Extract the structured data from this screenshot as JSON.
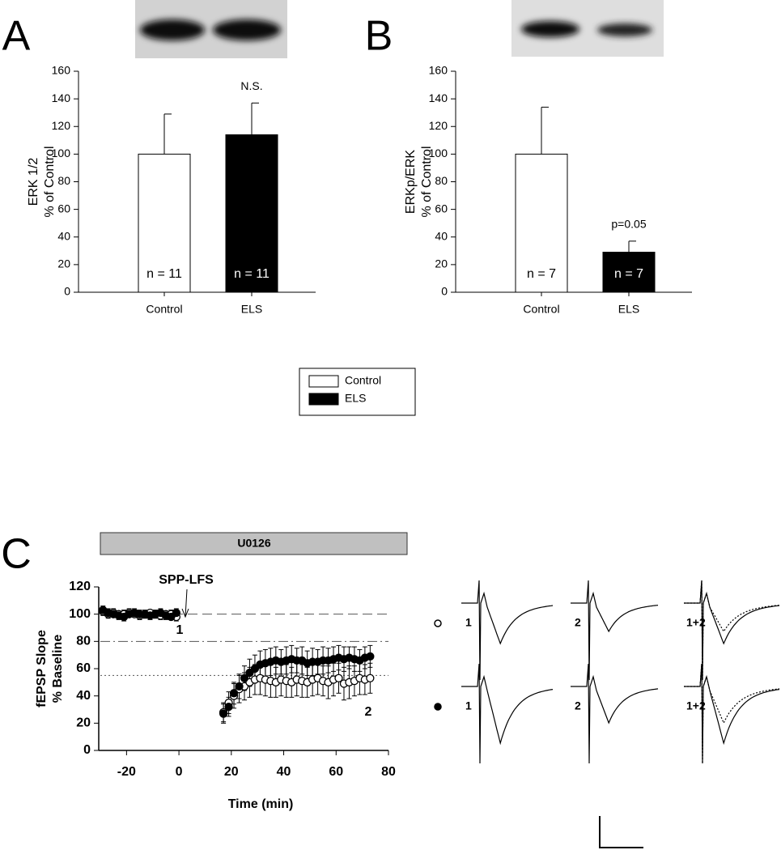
{
  "chart_data": [
    {
      "type": "bar",
      "panel": "A",
      "ylabel": [
        "ERK 1/2",
        "% of Control"
      ],
      "categories": [
        "Control",
        "ELS"
      ],
      "values": [
        100,
        114
      ],
      "errors": [
        29,
        23
      ],
      "colors": [
        "#ffffff",
        "#000000"
      ],
      "bar_labels": [
        "n = 11",
        "n = 11"
      ],
      "value_annotations": [
        null,
        "N.S."
      ],
      "ylim": [
        0,
        160
      ],
      "yticks": [
        0,
        20,
        40,
        60,
        80,
        100,
        120,
        140,
        160
      ]
    },
    {
      "type": "bar",
      "panel": "B",
      "ylabel": [
        "ERKp/ERK",
        "% of Control"
      ],
      "categories": [
        "Control",
        "ELS"
      ],
      "values": [
        100,
        29
      ],
      "errors": [
        34,
        8
      ],
      "colors": [
        "#ffffff",
        "#000000"
      ],
      "bar_labels": [
        "n = 7",
        "n = 7"
      ],
      "value_annotations": [
        null,
        "p=0.05"
      ],
      "ylim": [
        0,
        160
      ],
      "yticks": [
        0,
        20,
        40,
        60,
        80,
        100,
        120,
        140,
        160
      ]
    },
    {
      "type": "scatter",
      "panel": "C",
      "drug_bar": "U0126",
      "xlabel": "Time (min)",
      "ylabel": [
        "fEPSP Slope",
        "% Baseline"
      ],
      "x": [
        -29,
        -27,
        -25,
        -23,
        -21,
        -19,
        -17,
        -15,
        -13,
        -11,
        -9,
        -7,
        -5,
        -3,
        -1,
        17,
        19,
        21,
        23,
        25,
        27,
        29,
        31,
        33,
        35,
        37,
        39,
        41,
        43,
        45,
        47,
        49,
        51,
        53,
        55,
        57,
        59,
        61,
        63,
        65,
        67,
        69,
        71,
        73
      ],
      "series": [
        {
          "marker": "open",
          "color": "#ffffff",
          "values": [
            102,
            100,
            101,
            100,
            100,
            101,
            100,
            99,
            100,
            101,
            100,
            99,
            100,
            100,
            98,
            28,
            35,
            40,
            45,
            47,
            50,
            52,
            53,
            52,
            51,
            50,
            52,
            51,
            50,
            52,
            51,
            50,
            52,
            53,
            51,
            50,
            52,
            53,
            49,
            50,
            51,
            53,
            52,
            53
          ],
          "errors": [
            3,
            3,
            3,
            2,
            3,
            3,
            2,
            3,
            3,
            2,
            3,
            3,
            2,
            3,
            3,
            7,
            8,
            9,
            10,
            10,
            11,
            11,
            12,
            12,
            12,
            11,
            12,
            12,
            11,
            12,
            12,
            11,
            12,
            12,
            11,
            12,
            12,
            11,
            12,
            12,
            11,
            12,
            11,
            11
          ]
        },
        {
          "marker": "filled",
          "color": "#000000",
          "values": [
            103,
            101,
            100,
            99,
            98,
            100,
            101,
            100,
            100,
            99,
            100,
            101,
            99,
            98,
            101,
            27,
            32,
            42,
            47,
            53,
            57,
            60,
            63,
            64,
            65,
            66,
            65,
            66,
            67,
            66,
            66,
            64,
            65,
            65,
            66,
            66,
            67,
            68,
            67,
            68,
            67,
            66,
            68,
            69
          ],
          "errors": [
            3,
            3,
            2,
            3,
            3,
            2,
            3,
            3,
            2,
            3,
            2,
            3,
            3,
            2,
            3,
            7,
            7,
            8,
            9,
            9,
            10,
            10,
            10,
            10,
            10,
            10,
            9,
            10,
            10,
            9,
            10,
            9,
            10,
            9,
            10,
            9,
            9,
            9,
            9,
            8,
            9,
            8,
            8,
            8
          ]
        }
      ],
      "hlines": [
        {
          "value": 100,
          "style": "dashed"
        },
        {
          "value": 80,
          "style": "dashdot"
        },
        {
          "value": 55,
          "style": "dotted"
        }
      ],
      "annotations": [
        "SPP-LFS",
        "1",
        "2"
      ],
      "xlim": [
        -30,
        80
      ],
      "xticks": [
        -20,
        0,
        20,
        40,
        60,
        80
      ],
      "ylim": [
        0,
        120
      ],
      "yticks": [
        0,
        20,
        40,
        60,
        80,
        100,
        120
      ]
    }
  ],
  "legend": {
    "entries": [
      {
        "name": "Control",
        "color": "#ffffff"
      },
      {
        "name": "ELS",
        "color": "#000000"
      }
    ]
  },
  "traces": {
    "rows": [
      {
        "marker": "open",
        "labels": [
          "1",
          "2",
          "1+2"
        ]
      },
      {
        "marker": "filled",
        "labels": [
          "1",
          "2",
          "1+2"
        ]
      }
    ]
  }
}
